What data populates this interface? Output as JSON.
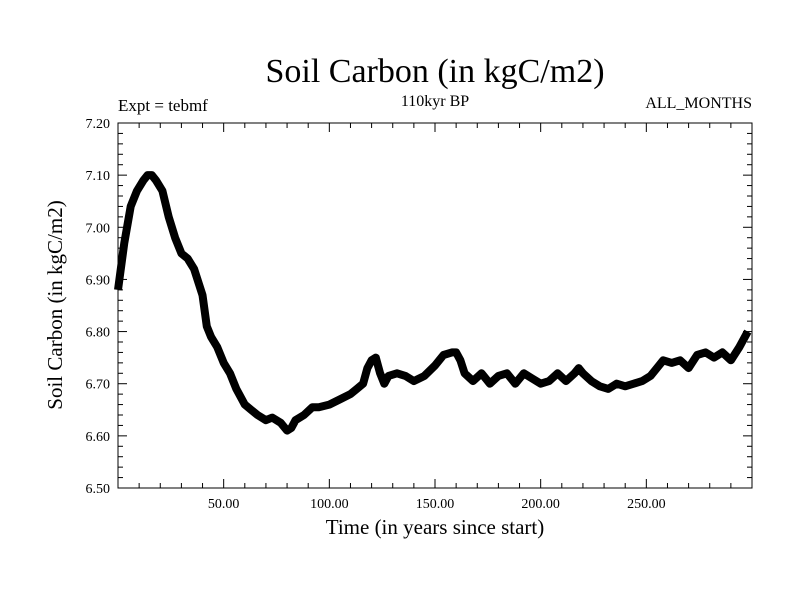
{
  "chart_data": {
    "type": "line",
    "title": "Soil Carbon (in kgC/m2)",
    "subtitle_left": "Expt = tebmf",
    "subtitle_center": "110kyr BP",
    "subtitle_right": "ALL_MONTHS",
    "xlabel": "Time (in years since start)",
    "ylabel": "Soil Carbon (in kgC/m2)",
    "xlim": [
      0,
      300
    ],
    "ylim": [
      6.5,
      7.2
    ],
    "x_ticks": [
      50,
      100,
      150,
      200,
      250
    ],
    "x_tick_labels": [
      "50.00",
      "100.00",
      "150.00",
      "200.00",
      "250.00"
    ],
    "y_ticks": [
      6.5,
      6.6,
      6.7,
      6.8,
      6.9,
      7.0,
      7.1,
      7.2
    ],
    "y_tick_labels": [
      "6.50",
      "6.60",
      "6.70",
      "6.80",
      "6.90",
      "7.00",
      "7.10",
      "7.20"
    ],
    "grid": false,
    "series": [
      {
        "name": "Soil Carbon",
        "color": "#000000",
        "x": [
          0,
          3,
          6,
          9,
          12,
          14,
          16,
          18,
          21,
          24,
          27,
          30,
          33,
          36,
          40,
          42,
          44,
          47,
          50,
          53,
          56,
          60,
          63,
          66,
          70,
          73,
          77,
          80,
          82,
          84,
          88,
          92,
          95,
          100,
          105,
          110,
          113,
          116,
          118,
          120,
          122,
          124,
          126,
          128,
          132,
          136,
          140,
          145,
          150,
          154,
          158,
          160,
          162,
          164,
          168,
          172,
          176,
          180,
          184,
          188,
          192,
          196,
          200,
          204,
          208,
          212,
          216,
          218,
          220,
          224,
          228,
          232,
          236,
          240,
          244,
          248,
          252,
          256,
          258,
          262,
          266,
          270,
          274,
          278,
          282,
          286,
          290,
          294,
          298
        ],
        "y": [
          6.88,
          6.97,
          7.04,
          7.07,
          7.09,
          7.1,
          7.1,
          7.09,
          7.07,
          7.02,
          6.98,
          6.95,
          6.94,
          6.92,
          6.87,
          6.81,
          6.79,
          6.77,
          6.74,
          6.72,
          6.69,
          6.66,
          6.65,
          6.64,
          6.63,
          6.635,
          6.625,
          6.61,
          6.615,
          6.63,
          6.64,
          6.655,
          6.655,
          6.66,
          6.67,
          6.68,
          6.69,
          6.7,
          6.73,
          6.745,
          6.75,
          6.72,
          6.7,
          6.715,
          6.72,
          6.715,
          6.705,
          6.715,
          6.735,
          6.755,
          6.76,
          6.76,
          6.745,
          6.72,
          6.705,
          6.72,
          6.7,
          6.715,
          6.72,
          6.7,
          6.72,
          6.71,
          6.7,
          6.705,
          6.72,
          6.705,
          6.72,
          6.73,
          6.72,
          6.705,
          6.695,
          6.69,
          6.7,
          6.695,
          6.7,
          6.705,
          6.715,
          6.735,
          6.745,
          6.74,
          6.745,
          6.73,
          6.755,
          6.76,
          6.75,
          6.76,
          6.745,
          6.77,
          6.8
        ]
      }
    ]
  }
}
